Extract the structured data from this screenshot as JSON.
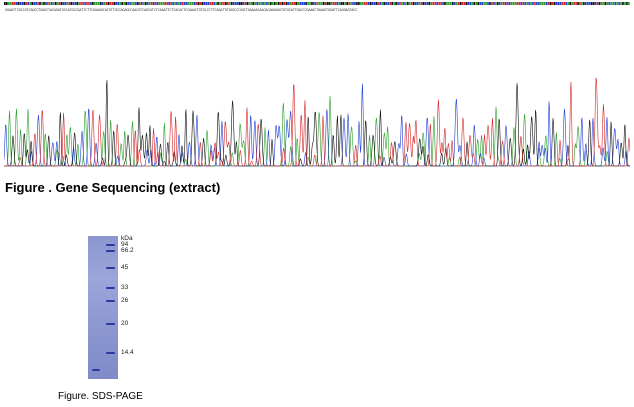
{
  "sequence_strip": {
    "text": "GGAATTCGCCGTCAGCCTGAGCTACAGATGCCATGCCGATTCTTCGAAAGCATGTTGCCAGAGCCAACGTCAGCATCTCAAATTCTCACACTCCAAACTGTGCCCTTCAGATTGTAGCCCGGCTGAAGACAACACAGAGAGTGTGCATTGACCCGAAGCTAAAGTGGATTCAGGAGTACC",
    "colors": {
      "A": "#2ca02c",
      "C": "#1f3fd6",
      "G": "#111111",
      "T": "#d62728"
    }
  },
  "chromatogram": {
    "trace_colors": {
      "A": "#2ca02c",
      "C": "#1f3fd6",
      "G": "#111111",
      "T": "#d62728"
    }
  },
  "gene_caption": "Figure . Gene Sequencing (extract)",
  "sds_page": {
    "unit_label": "kDa",
    "markers": [
      {
        "label": "94"
      },
      {
        "label": "66.2"
      },
      {
        "label": "45"
      },
      {
        "label": "33"
      },
      {
        "label": "26"
      },
      {
        "label": "20"
      },
      {
        "label": "14.4"
      }
    ],
    "band_color": "#2c37a0",
    "gel_color": "#8e99d2"
  },
  "sds_caption": "Figure. SDS-PAGE"
}
